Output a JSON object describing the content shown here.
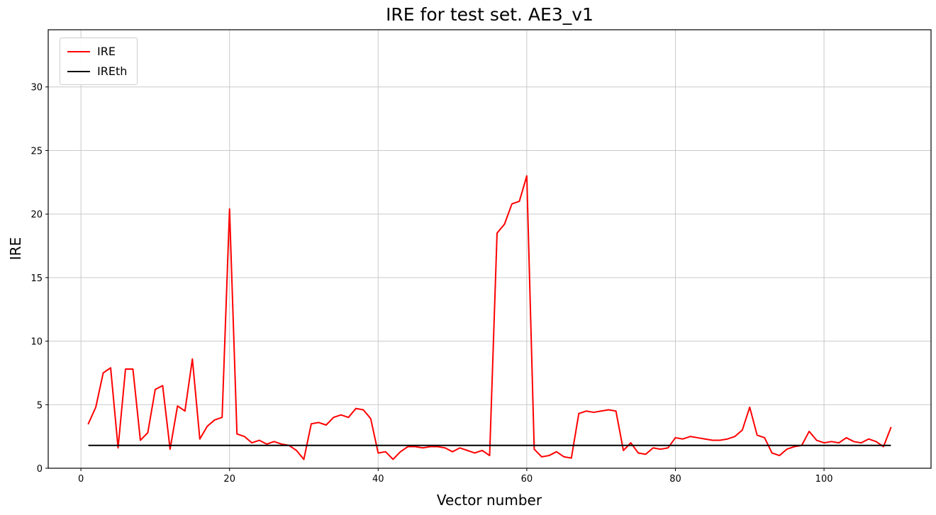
{
  "figure": {
    "title": "IRE for test set. AE3_v1",
    "xlabel": "Vector number",
    "ylabel": "IRE"
  },
  "colors": {
    "axis": "#000000",
    "grid": "#c9c9c9",
    "background": "#ffffff",
    "ire_line": "#ff0000",
    "threshold_line": "#000000"
  },
  "chart_data": {
    "type": "line",
    "title": "IRE for test set. AE3_v1",
    "xlabel": "Vector number",
    "ylabel": "IRE",
    "grid": true,
    "legend_position": "upper-left",
    "x_start": 1,
    "x_step": 1,
    "xlim": [
      -4.4,
      114.4
    ],
    "ylim": [
      0,
      34.5
    ],
    "xticks": [
      0,
      20,
      40,
      60,
      80,
      100
    ],
    "yticks": [
      0,
      5,
      10,
      15,
      20,
      25,
      30
    ],
    "series": [
      {
        "name": "IRE",
        "color": "#ff0000",
        "values": [
          3.5,
          4.8,
          7.5,
          7.9,
          1.6,
          7.8,
          7.8,
          2.2,
          2.8,
          6.2,
          6.5,
          1.5,
          4.9,
          4.5,
          8.6,
          2.3,
          3.3,
          3.8,
          4.0,
          20.4,
          2.7,
          2.5,
          2.0,
          2.2,
          1.9,
          2.1,
          1.9,
          1.8,
          1.4,
          0.7,
          3.5,
          3.6,
          3.4,
          4.0,
          4.2,
          4.0,
          4.7,
          4.6,
          3.9,
          1.2,
          1.3,
          0.7,
          1.3,
          1.7,
          1.7,
          1.6,
          1.7,
          1.7,
          1.6,
          1.3,
          1.6,
          1.4,
          1.2,
          1.4,
          1.0,
          18.5,
          19.2,
          20.8,
          21.0,
          23.0,
          1.5,
          0.9,
          1.0,
          1.3,
          0.9,
          0.8,
          4.3,
          4.5,
          4.4,
          4.5,
          4.6,
          4.5,
          1.4,
          2.0,
          1.2,
          1.1,
          1.6,
          1.5,
          1.6,
          2.4,
          2.3,
          2.5,
          2.4,
          2.3,
          2.2,
          2.2,
          2.3,
          2.5,
          3.0,
          4.8,
          2.6,
          2.4,
          1.2,
          1.0,
          1.5,
          1.7,
          1.8,
          2.9,
          2.2,
          2.0,
          2.1,
          2.0,
          2.4,
          2.1,
          2.0,
          2.3,
          2.1,
          1.7,
          3.2
        ]
      },
      {
        "name": "IREth",
        "color": "#000000",
        "constant": 1.8
      }
    ]
  }
}
